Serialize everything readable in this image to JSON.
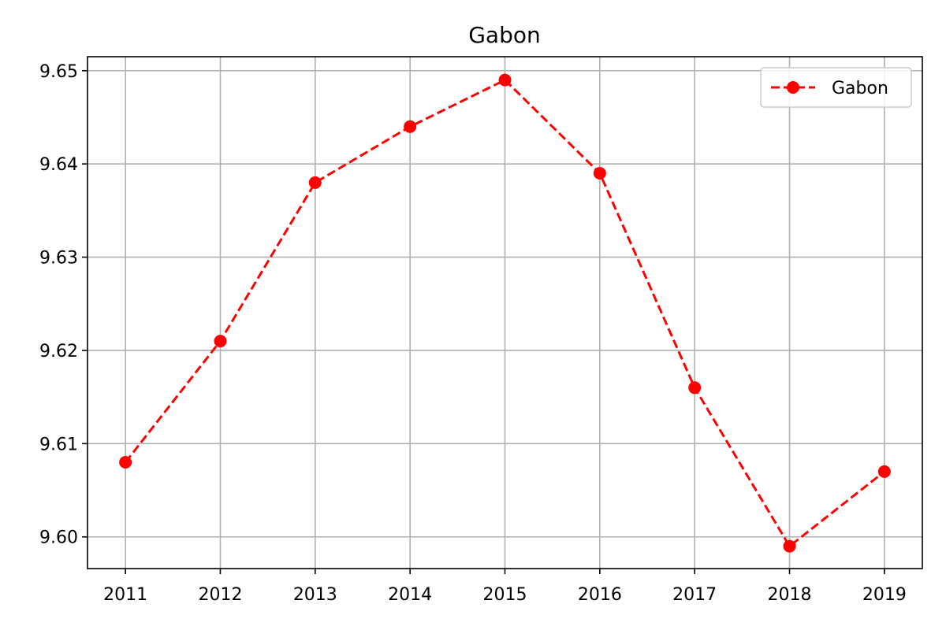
{
  "chart_data": {
    "type": "line",
    "title": "Gabon",
    "xlabel": "",
    "ylabel": "",
    "x": [
      2011,
      2012,
      2013,
      2014,
      2015,
      2016,
      2017,
      2018,
      2019
    ],
    "x_tick_labels": [
      "2011",
      "2012",
      "2013",
      "2014",
      "2015",
      "2016",
      "2017",
      "2018",
      "2019"
    ],
    "y_ticks": [
      9.6,
      9.61,
      9.62,
      9.63,
      9.64,
      9.65
    ],
    "y_tick_labels": [
      "9.60",
      "9.61",
      "9.62",
      "9.63",
      "9.64",
      "9.65"
    ],
    "xlim": [
      2010.6,
      2019.4
    ],
    "ylim": [
      9.5966,
      9.6515
    ],
    "grid": true,
    "legend_position": "top-right",
    "series": [
      {
        "name": "Gabon",
        "color": "#ff0000",
        "line_style": "dashed",
        "marker": "circle",
        "values": [
          9.608,
          9.621,
          9.638,
          9.644,
          9.649,
          9.639,
          9.616,
          9.599,
          9.607
        ]
      }
    ]
  }
}
